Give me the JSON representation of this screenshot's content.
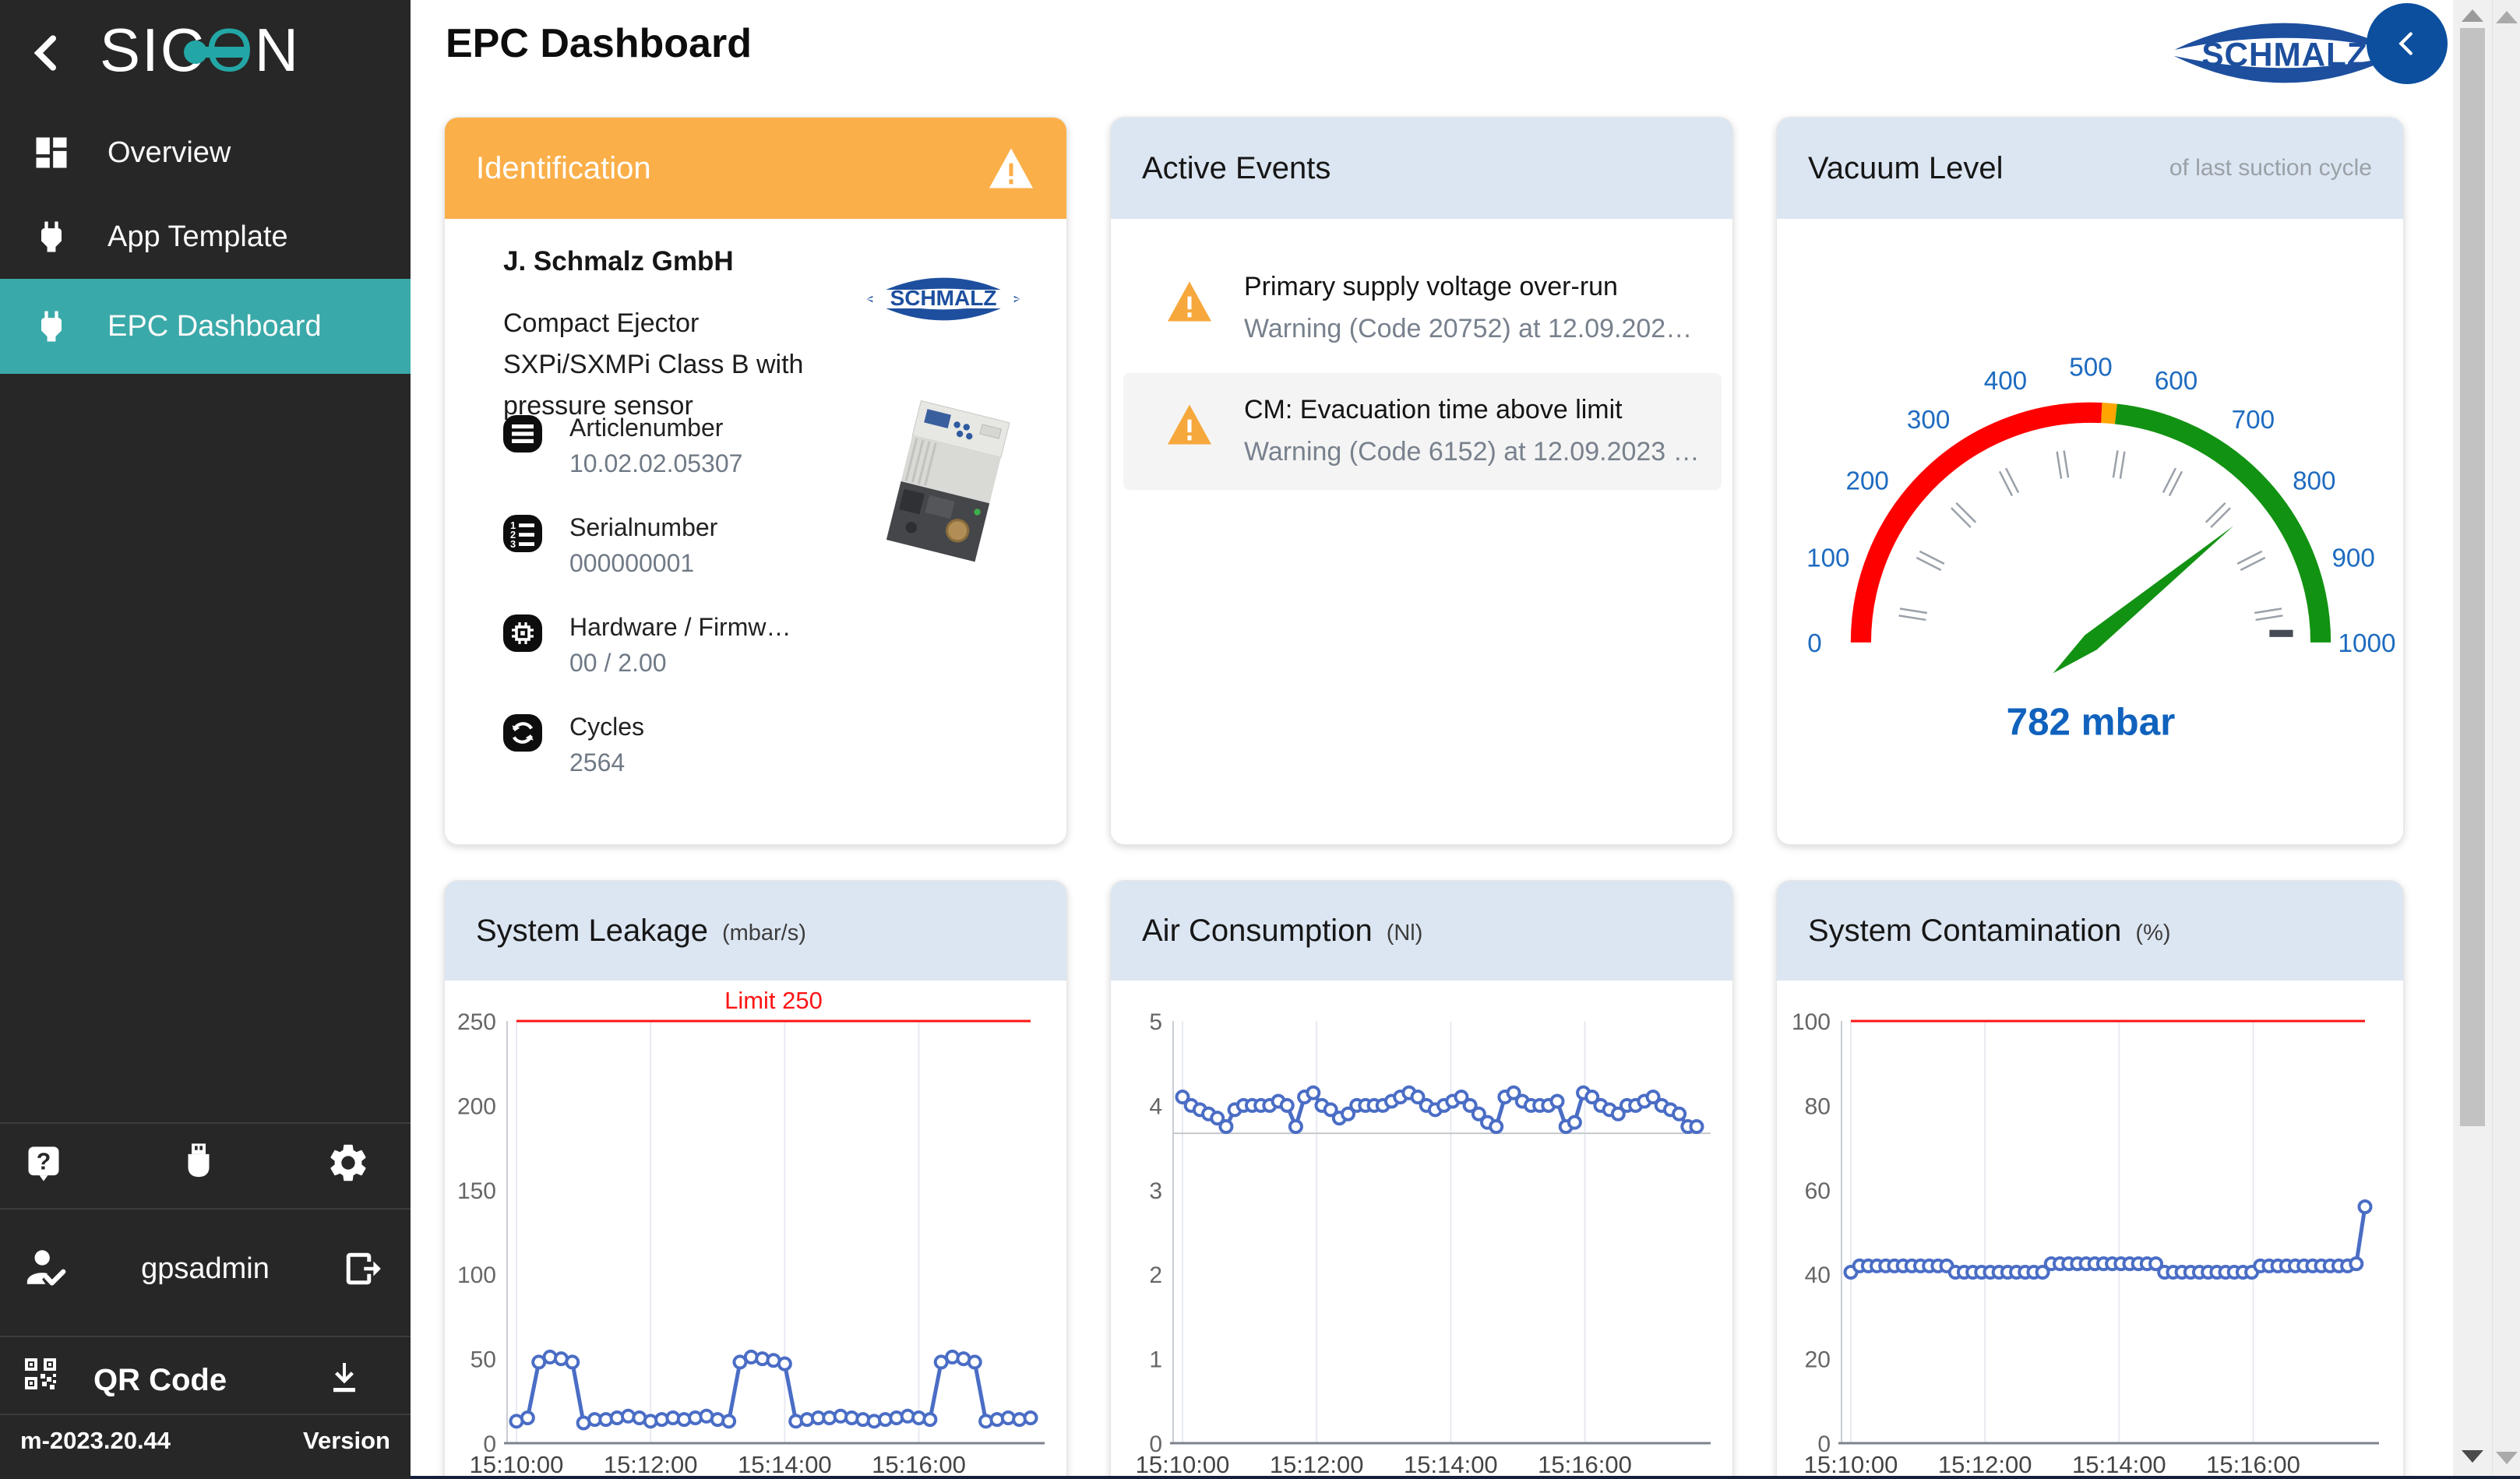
{
  "sidebar": {
    "logo_text_left": "SI",
    "logo_text_c": "C",
    "logo_text_o": "O",
    "logo_text_right": "N",
    "items": [
      {
        "label": "Overview"
      },
      {
        "label": "App Template"
      },
      {
        "label": "EPC Dashboard"
      }
    ],
    "username": "gpsadmin",
    "qr_label": "QR Code",
    "version_value": "m-2023.20.44",
    "version_label": "Version"
  },
  "header": {
    "title": "EPC Dashboard",
    "brand": "SCHMALZ"
  },
  "identification": {
    "title": "Identification",
    "company": "J. Schmalz GmbH",
    "product": "Compact Ejector SXPi/SXMPi Class B with pressure sensor",
    "brand": "SCHMALZ",
    "fields": [
      {
        "label": "Articlenumber",
        "value": "10.02.02.05307"
      },
      {
        "label": "Serialnumber",
        "value": "000000001"
      },
      {
        "label": "Hardware / Firmw…",
        "value": "00 / 2.00"
      },
      {
        "label": "Cycles",
        "value": "2564"
      }
    ]
  },
  "active_events": {
    "title": "Active Events",
    "events": [
      {
        "title": "Primary supply voltage over-run",
        "detail": "Warning (Code 20752) at 12.09.202…"
      },
      {
        "title": "CM: Evacuation time above limit",
        "detail": "Warning (Code 6152) at 12.09.2023 …"
      }
    ]
  },
  "vacuum": {
    "title": "Vacuum Level",
    "subtitle": "of last suction cycle",
    "value": 782,
    "value_label": "782 mbar",
    "min": 0,
    "max": 1000,
    "red_end": 515,
    "orange_end": 535,
    "label_step": 100,
    "limit_marker": 985
  },
  "chart_data": [
    {
      "type": "line",
      "title": "System Leakage",
      "unit": "(mbar/s)",
      "ylim": [
        0,
        250
      ],
      "yticks": [
        0,
        50,
        100,
        150,
        200,
        250
      ],
      "limit": {
        "value": 250,
        "label": "Limit 250"
      },
      "x_ticks": [
        "15:10:00",
        "15:12:00",
        "15:14:00",
        "15:16:00"
      ],
      "x_tick_seconds": [
        0,
        120,
        240,
        360
      ],
      "x_span_seconds": 460,
      "values": [
        13,
        15,
        48,
        51,
        50,
        48,
        12,
        14,
        14,
        15,
        16,
        15,
        13,
        14,
        15,
        14,
        15,
        16,
        14,
        13,
        48,
        51,
        50,
        49,
        47,
        13,
        14,
        15,
        15,
        16,
        15,
        14,
        13,
        14,
        15,
        16,
        15,
        14,
        48,
        51,
        50,
        48,
        13,
        14,
        15,
        14,
        15
      ]
    },
    {
      "type": "line",
      "title": "Air Consumption",
      "unit": "(Nl)",
      "ylim": [
        0,
        5
      ],
      "yticks": [
        0,
        1,
        2,
        3,
        4,
        5
      ],
      "baseline": 3.67,
      "x_ticks": [
        "15:10:00",
        "15:12:00",
        "15:14:00",
        "15:16:00"
      ],
      "x_tick_seconds": [
        0,
        120,
        240,
        360
      ],
      "x_span_seconds": 460,
      "values": [
        4.1,
        4.0,
        3.95,
        3.9,
        3.85,
        3.75,
        3.95,
        4.0,
        4.0,
        4.0,
        4.0,
        4.05,
        4.0,
        3.75,
        4.1,
        4.15,
        4.0,
        3.95,
        3.85,
        3.9,
        4.0,
        4.0,
        4.0,
        4.0,
        4.05,
        4.1,
        4.15,
        4.1,
        4.0,
        3.95,
        4.0,
        4.05,
        4.1,
        4.0,
        3.9,
        3.8,
        3.75,
        4.1,
        4.15,
        4.05,
        4.0,
        4.0,
        4.0,
        4.05,
        3.75,
        3.8,
        4.15,
        4.1,
        4.0,
        3.95,
        3.9,
        4.0,
        4.0,
        4.05,
        4.1,
        4.0,
        3.95,
        3.9,
        3.75,
        3.75
      ]
    },
    {
      "type": "line",
      "title": "System Contamination",
      "unit": "(%)",
      "ylim": [
        0,
        100
      ],
      "yticks": [
        0,
        20,
        40,
        60,
        80,
        100
      ],
      "limit": {
        "value": 100,
        "label": ""
      },
      "x_ticks": [
        "15:10:00",
        "15:12:00",
        "15:14:00",
        "15:16:00"
      ],
      "x_tick_seconds": [
        0,
        120,
        240,
        360
      ],
      "x_span_seconds": 460,
      "values": [
        40.5,
        42,
        42,
        42,
        42,
        42,
        42,
        42,
        42,
        42,
        42,
        42,
        40.5,
        40.5,
        40.5,
        40.5,
        40.5,
        40.5,
        40.5,
        40.5,
        40.5,
        40.5,
        40.5,
        42.5,
        42.5,
        42.5,
        42.5,
        42.5,
        42.5,
        42.5,
        42.5,
        42.5,
        42.5,
        42.5,
        42.5,
        42.5,
        40.5,
        40.5,
        40.5,
        40.5,
        40.5,
        40.5,
        40.5,
        40.5,
        40.5,
        40.5,
        40.5,
        42,
        42,
        42,
        42,
        42,
        42,
        42,
        42,
        42,
        42,
        42,
        42.5,
        56
      ]
    }
  ],
  "colors": {
    "accent_teal": "#3aa9a9",
    "header_blue": "#dce6f2",
    "warning_orange": "#fbaf49",
    "line_blue": "#4a6dc5",
    "limit_red": "#fe1414",
    "gauge_red": "#fe0000",
    "gauge_orange": "#ffa500",
    "gauge_green": "#129212",
    "gauge_label_blue": "#1e6bbf",
    "value_blue": "#1062bd",
    "schmalz_blue": "#1d4f9e"
  }
}
